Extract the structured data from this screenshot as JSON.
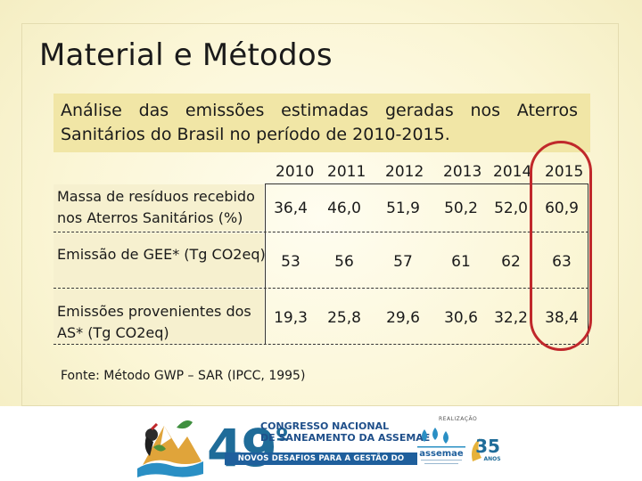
{
  "slide": {
    "title": "Material e Métodos",
    "subtitle": "Análise das emissões estimadas geradas nos Aterros Sanitários do Brasil no período de 2010-2015.",
    "source": "Fonte: Método GWP – SAR (IPCC, 1995)"
  },
  "table": {
    "years": [
      "2010",
      "2011",
      "2012",
      "2013",
      "2014",
      "2015"
    ],
    "rows": [
      {
        "label": "Massa de resíduos recebido nos Aterros Sanitários (%)",
        "values": [
          "36,4",
          "46,0",
          "51,9",
          "50,2",
          "52,0",
          "60,9"
        ]
      },
      {
        "label": "Emissão de GEE* (Tg CO2eq)",
        "values": [
          "53",
          "56",
          "57",
          "61",
          "62",
          "63"
        ]
      },
      {
        "label": "Emissões provenientes dos AS* (Tg CO2eq)",
        "values": [
          "19,3",
          "25,8",
          "29,6",
          "30,6",
          "32,2",
          "38,4"
        ]
      }
    ],
    "highlight_color": "#c0282b"
  },
  "footer": {
    "edition": "49",
    "edition_mark": "º",
    "congress_line1": "CONGRESSO NACIONAL",
    "congress_line2": "DE SANEAMENTO DA ASSEMAE",
    "slogan": "NOVOS DESAFIOS PARA A GESTÃO DO SANEAMENTO",
    "realizacao": "REALIZAÇÃO",
    "assemae": "assemae",
    "anos_number": "35",
    "anos_label": "ANOS",
    "brand_color": "#1f6c99"
  }
}
